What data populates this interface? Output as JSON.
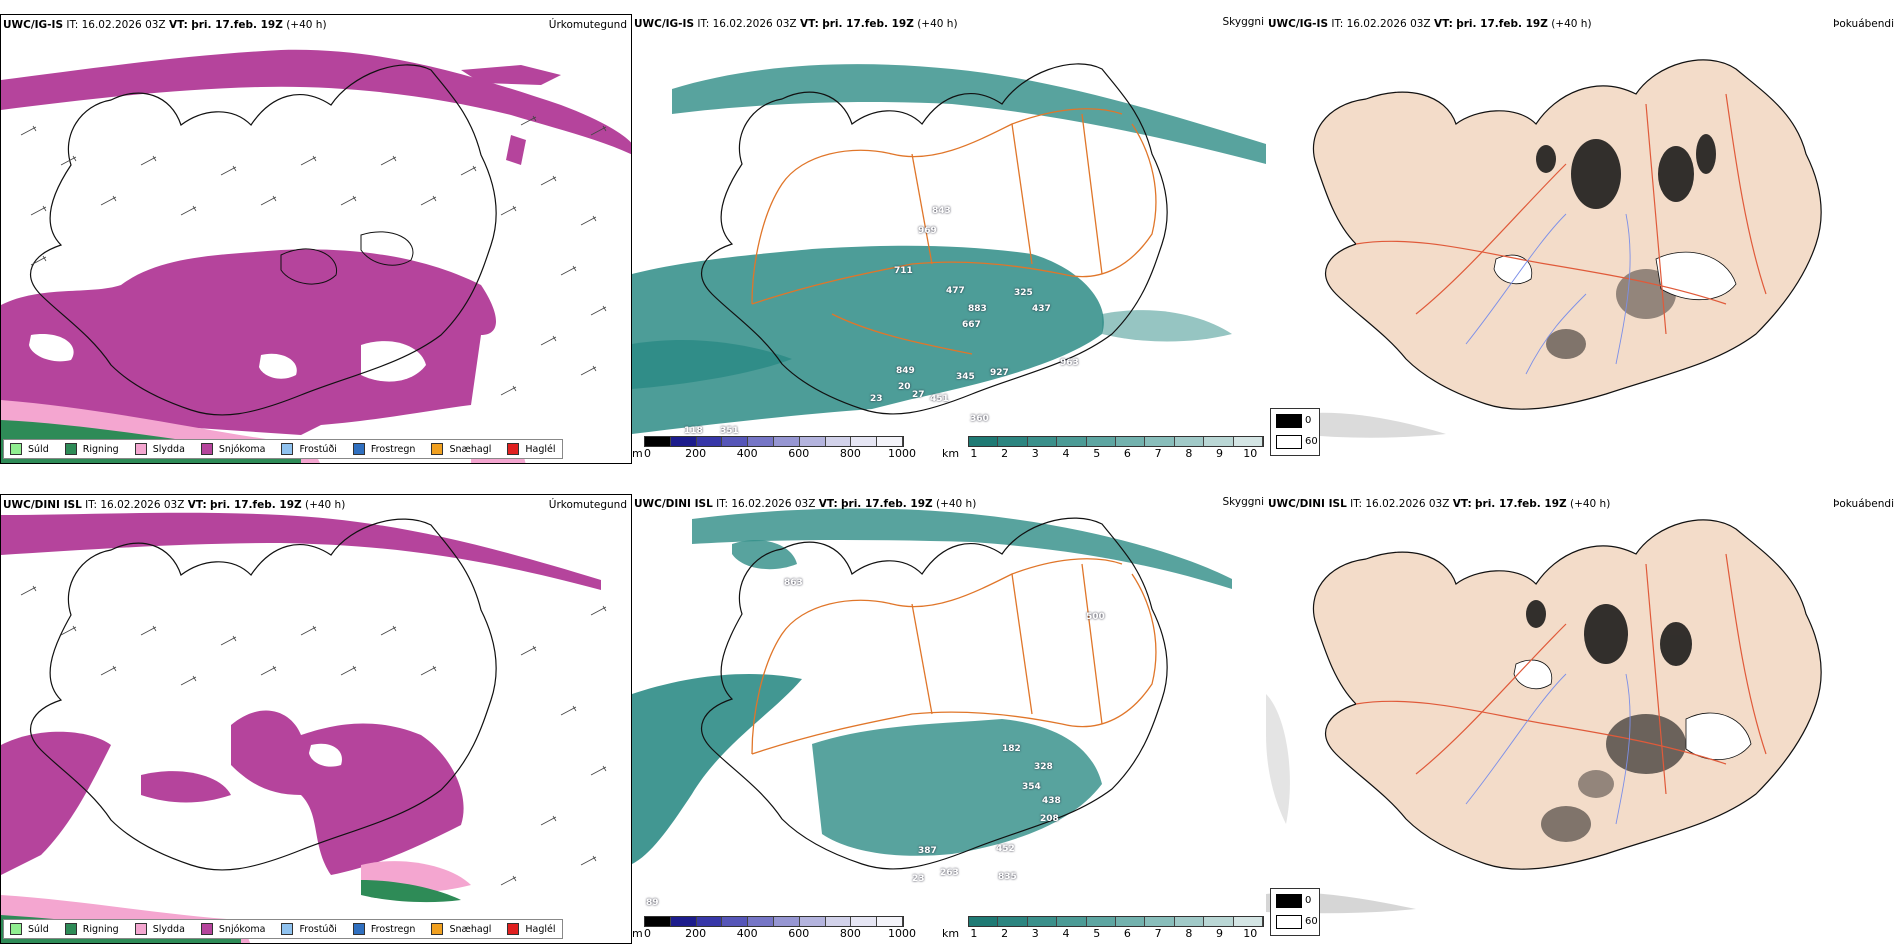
{
  "rows": [
    {
      "model": "UWC/IG-IS",
      "it_label": "IT:",
      "it_value": "16.02.2026 03Z",
      "vt_label": "VT:",
      "vt_value": "þri. 17.feb. 19Z",
      "lead": "(+40 h)",
      "sky_labels": [
        "843",
        "969",
        "711",
        "477",
        "325",
        "883",
        "437",
        "667",
        "963",
        "849",
        "345",
        "927",
        "20",
        "451",
        "351",
        "118",
        "360",
        "23",
        "27"
      ],
      "sky_label_pos_note": ""
    },
    {
      "model": "UWC/DINI ISL",
      "it_label": "IT:",
      "it_value": "16.02.2026 03Z",
      "vt_label": "VT:",
      "vt_value": "þri. 17.feb. 19Z",
      "lead": "(+40 h)",
      "sky_labels": [
        "863",
        "500",
        "182",
        "328",
        "354",
        "438",
        "208",
        "452",
        "387",
        "263",
        "835",
        "89",
        "23"
      ]
    }
  ],
  "panel_titles": {
    "precip": "Úrkomutegund",
    "visibility": "Skyggni",
    "fog": "Þokuábendi"
  },
  "precip_legend": [
    {
      "label": "Súld",
      "color": "#90ee90"
    },
    {
      "label": "Rigning",
      "color": "#2e8b57"
    },
    {
      "label": "Slydda",
      "color": "#f4a6d0"
    },
    {
      "label": "Snjókoma",
      "color": "#b5449c"
    },
    {
      "label": "Frostúði",
      "color": "#8fc2ef"
    },
    {
      "label": "Frostregn",
      "color": "#2f6fbf"
    },
    {
      "label": "Snæhagl",
      "color": "#f0a020"
    },
    {
      "label": "Haglél",
      "color": "#e02020"
    }
  ],
  "cloudbase_scale": {
    "unit": "m",
    "ticks": [
      "0",
      "200",
      "400",
      "600",
      "800",
      "1000"
    ],
    "colors": [
      "#000000",
      "#1c1c8c",
      "#3737a8",
      "#5656b8",
      "#7676c6",
      "#9696d2",
      "#b4b4de",
      "#d2d2ea",
      "#e6e6f4",
      "#f4f4fa"
    ]
  },
  "visibility_scale": {
    "unit": "km",
    "ticks": [
      "1",
      "2",
      "3",
      "4",
      "5",
      "6",
      "7",
      "8",
      "9",
      "10"
    ],
    "colors": [
      "#1f7a74",
      "#2c8580",
      "#3b908b",
      "#4c9b96",
      "#5ea6a2",
      "#73b2ae",
      "#89bebb",
      "#a1cac8",
      "#bad7d5",
      "#d4e5e4"
    ]
  },
  "fog_legend": [
    {
      "label": "0",
      "color": "#000000"
    },
    {
      "label": "60",
      "color": "#ffffff"
    }
  ],
  "colors": {
    "snow": "#b5449c",
    "rain": "#2e8b57",
    "sleet": "#f4a6d0",
    "drizzle": "#90ee90",
    "visibility": "#2e8c86",
    "land_fog": "#f3dcc9",
    "roads": "#e0762a",
    "rivers": "#7c8fe8",
    "coast": "#111111"
  }
}
